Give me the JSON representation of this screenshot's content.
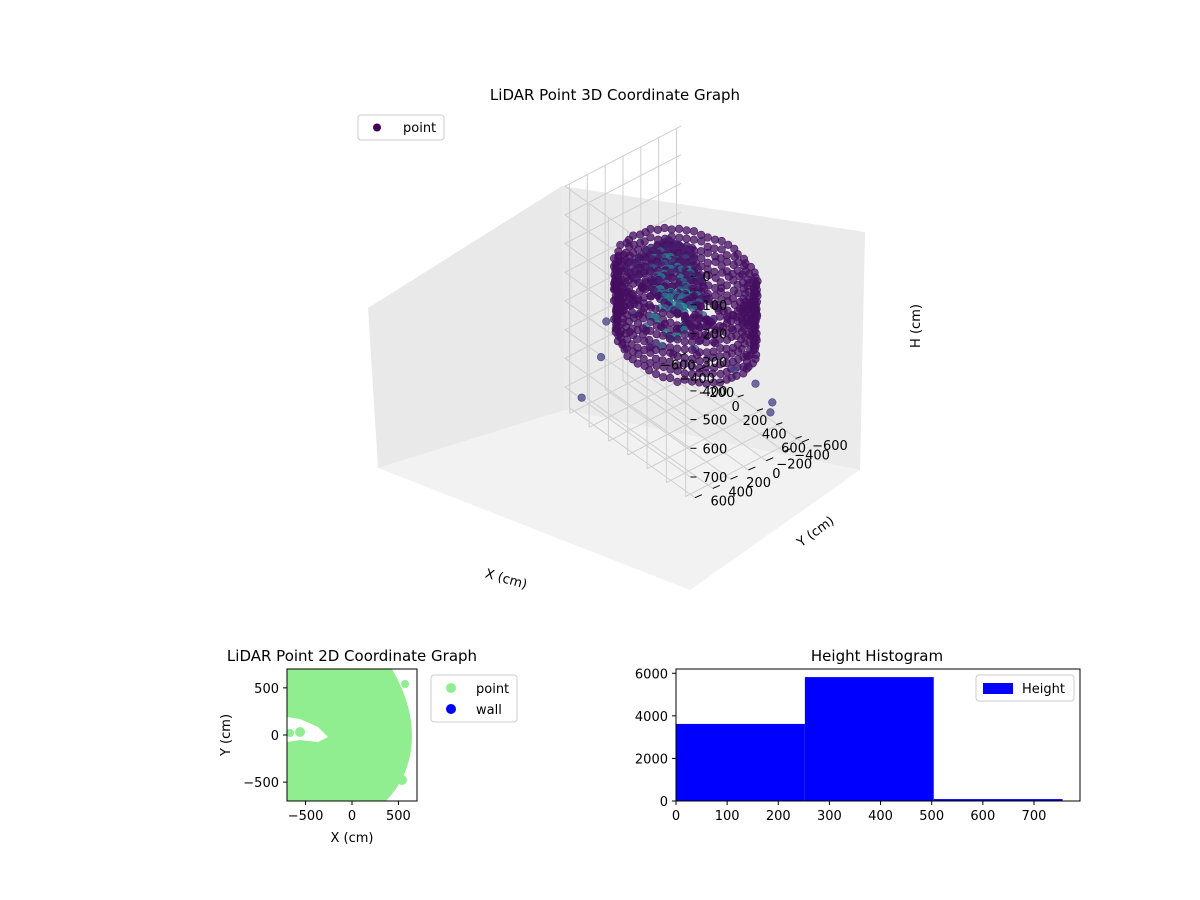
{
  "chart_data": [
    {
      "type": "scatter",
      "projection": "3d",
      "title": "LiDAR Point 3D Coordinate Graph",
      "xlabel": "X (cm)",
      "ylabel": "Y (cm)",
      "zlabel": "H (cm)",
      "xlim": [
        -650,
        650
      ],
      "ylim": [
        -650,
        650
      ],
      "zlim": [
        0,
        780
      ],
      "zaxis_inverted": true,
      "x_ticks": [
        "−600",
        "−400",
        "−200",
        "0",
        "200",
        "400",
        "600"
      ],
      "y_ticks": [
        "−600",
        "−400",
        "−200",
        "0",
        "200",
        "400",
        "600"
      ],
      "z_ticks": [
        "0",
        "100",
        "200",
        "300",
        "400",
        "500",
        "600",
        "700"
      ],
      "grid": true,
      "colormap": "viridis",
      "legend": {
        "position": "upper-left",
        "entries": [
          "point"
        ]
      },
      "series": [
        {
          "name": "point",
          "color": "#440154",
          "description": "dense cylindrical wall of points, radius ~500-550 cm, heights 250-500 cm, plus sparse outliers",
          "points": [
            {
              "x": -560,
              "y": 560,
              "z": 730
            },
            {
              "x": -600,
              "y": 300,
              "z": 640
            },
            {
              "x": -620,
              "y": -100,
              "z": 560
            },
            {
              "x": -640,
              "y": -460,
              "z": 520
            },
            {
              "x": -300,
              "y": -620,
              "z": 590
            },
            {
              "x": 150,
              "y": -620,
              "z": 700
            },
            {
              "x": 380,
              "y": -560,
              "z": 700
            },
            {
              "x": 600,
              "y": -300,
              "z": 640
            },
            {
              "x": 620,
              "y": 120,
              "z": 420
            },
            {
              "x": 560,
              "y": 500,
              "z": 300
            },
            {
              "x": 200,
              "y": 600,
              "z": 360
            },
            {
              "x": -250,
              "y": 620,
              "z": 380
            },
            {
              "x": 0,
              "y": 0,
              "z": 200
            },
            {
              "x": 100,
              "y": 200,
              "z": 180
            },
            {
              "x": -150,
              "y": 100,
              "z": 220
            }
          ]
        }
      ]
    },
    {
      "type": "scatter",
      "title": "LiDAR Point 2D Coordinate Graph",
      "xlabel": "X (cm)",
      "ylabel": "Y (cm)",
      "xlim": [
        -700,
        700
      ],
      "ylim": [
        -700,
        700
      ],
      "x_ticks": [
        "−500",
        "0",
        "500"
      ],
      "y_ticks": [
        "−500",
        "0",
        "500"
      ],
      "legend": {
        "position": "outside-right",
        "entries": [
          "point",
          "wall"
        ]
      },
      "series": [
        {
          "name": "point",
          "color": "#90ee90",
          "description": "dense filled disc of radius ~550 cm with small gap near (-400, 0)"
        },
        {
          "name": "wall",
          "color": "#0000ff",
          "values": []
        }
      ]
    },
    {
      "type": "bar",
      "subtype": "histogram",
      "title": "Height Histogram",
      "xlabel": "",
      "ylabel": "",
      "xlim": [
        0,
        790
      ],
      "ylim": [
        0,
        6200
      ],
      "x_ticks": [
        "0",
        "100",
        "200",
        "300",
        "400",
        "500",
        "600",
        "700"
      ],
      "y_ticks": [
        "0",
        "2000",
        "4000",
        "6000"
      ],
      "legend": {
        "position": "upper-right",
        "entries": [
          "Height"
        ]
      },
      "series": [
        {
          "name": "Height",
          "color": "#0000ff",
          "bins": [
            {
              "start": 0,
              "end": 252,
              "count": 3620
            },
            {
              "start": 252,
              "end": 504,
              "count": 5820
            },
            {
              "start": 504,
              "end": 756,
              "count": 90
            },
            {
              "start": 756,
              "end": 790,
              "count": 20
            }
          ]
        }
      ]
    }
  ]
}
